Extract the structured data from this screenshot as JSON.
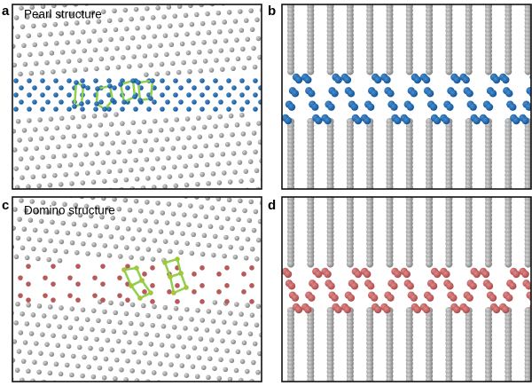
{
  "panels": [
    {
      "label": "a",
      "title": "Pearl structure"
    },
    {
      "label": "b"
    },
    {
      "label": "c",
      "title": "Domino structure"
    },
    {
      "label": "d"
    }
  ]
}
